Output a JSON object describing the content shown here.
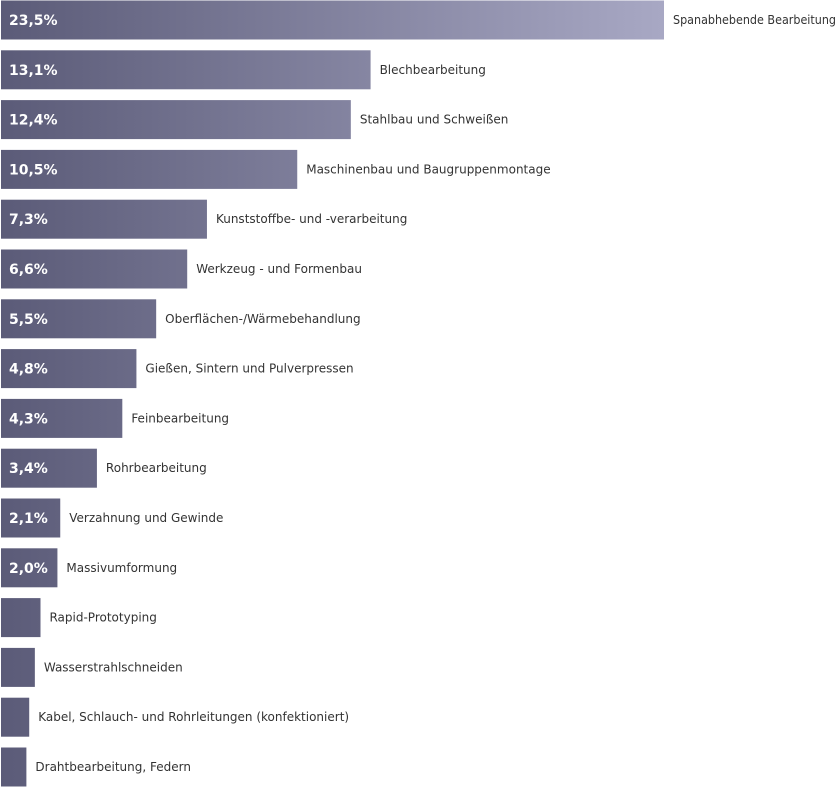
{
  "chart_data": {
    "type": "bar",
    "orientation": "horizontal",
    "title": "",
    "xlabel": "",
    "ylabel": "",
    "grid": false,
    "legend": "none",
    "xlim": [
      0,
      23.5
    ],
    "colors": {
      "bar_start": "#5b5b78",
      "bar_end": "#a8a8c4",
      "label_text": "#ffffff",
      "category_text": "#333333"
    },
    "categories": [
      "Spanabhebende Bearbeitung",
      "Blechbearbeitung",
      "Stahlbau und Schweißen",
      "Maschinenbau und Baugruppenmontage",
      "Kunststoffbe- und -verarbeitung",
      "Werkzeug - und Formenbau",
      "Oberflächen-/Wärmebehandlung",
      "Gießen, Sintern und Pulverpressen",
      "Feinbearbeitung",
      "Rohrbearbeitung",
      "Verzahnung und Gewinde",
      "Massivumformung",
      "Rapid-Prototyping",
      "Wasserstrahlschneiden",
      "Kabel, Schlauch- und Rohrleitungen (konfektioniert)",
      "Drahtbearbeitung, Federn"
    ],
    "values": [
      23.5,
      13.1,
      12.4,
      10.5,
      7.3,
      6.6,
      5.5,
      4.8,
      4.3,
      3.4,
      2.1,
      2.0,
      1.4,
      1.2,
      1.0,
      0.9
    ],
    "value_labels": [
      "23,5%",
      "13,1%",
      "12,4%",
      "10,5%",
      "7,3%",
      "6,6%",
      "5,5%",
      "4,8%",
      "4,3%",
      "3,4%",
      "2,1%",
      "2,0%",
      "",
      "",
      "",
      ""
    ]
  }
}
